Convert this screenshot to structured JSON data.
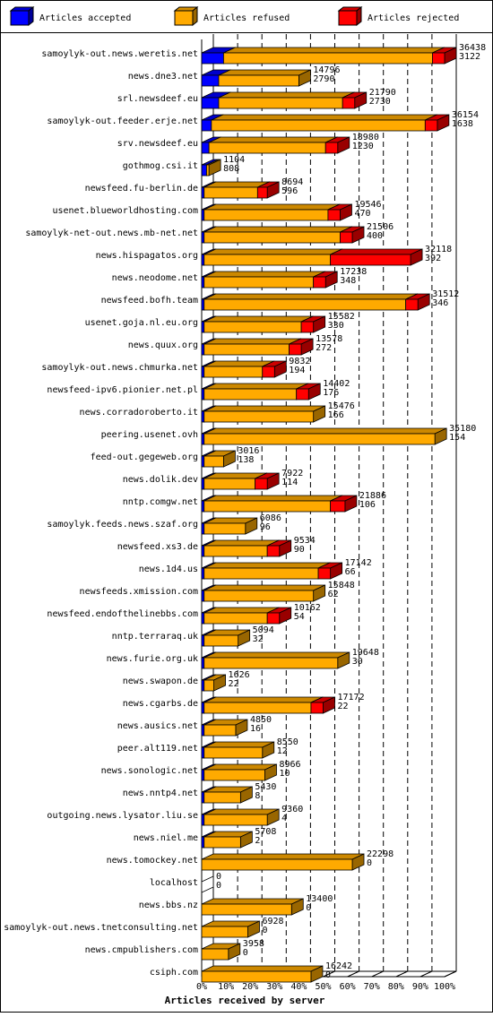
{
  "chart_data": {
    "type": "bar",
    "orientation": "horizontal",
    "stacked": true,
    "xlabel": "Articles received by server",
    "xlim": [
      0,
      100
    ],
    "x_ticks": [
      "0%",
      "10%",
      "20%",
      "30%",
      "40%",
      "50%",
      "60%",
      "70%",
      "80%",
      "90%",
      "100%"
    ],
    "grid": true,
    "legend_position": "top",
    "series": [
      {
        "name": "Articles accepted",
        "color": "#0000ff"
      },
      {
        "name": "Articles refused",
        "color": "#ffaa00"
      },
      {
        "name": "Articles rejected",
        "color": "#ff0000"
      }
    ],
    "rows": [
      {
        "server": "samoylyk-out.news.weretis.net",
        "label_top": "36438",
        "label_bottom": "3122",
        "accepted": 9,
        "refused": 86,
        "rejected": 5
      },
      {
        "server": "news.dne3.net",
        "label_top": "14796",
        "label_bottom": "2790",
        "accepted": 7,
        "refused": 33,
        "rejected": 0
      },
      {
        "server": "srl.newsdeef.eu",
        "label_top": "21790",
        "label_bottom": "2730",
        "accepted": 7,
        "refused": 51,
        "rejected": 5
      },
      {
        "server": "samoylyk-out.feeder.erje.net",
        "label_top": "36154",
        "label_bottom": "1638",
        "accepted": 4,
        "refused": 88,
        "rejected": 5
      },
      {
        "server": "srv.newsdeef.eu",
        "label_top": "18980",
        "label_bottom": "1230",
        "accepted": 3,
        "refused": 48,
        "rejected": 5
      },
      {
        "server": "gothmog.csi.it",
        "label_top": "1104",
        "label_bottom": "808",
        "accepted": 2,
        "refused": 1,
        "rejected": 0
      },
      {
        "server": "newsfeed.fu-berlin.de",
        "label_top": "8694",
        "label_bottom": "596",
        "accepted": 1,
        "refused": 22,
        "rejected": 4
      },
      {
        "server": "usenet.blueworldhosting.com",
        "label_top": "19546",
        "label_bottom": "470",
        "accepted": 1,
        "refused": 51,
        "rejected": 5
      },
      {
        "server": "samoylyk-net-out.news.mb-net.net",
        "label_top": "21506",
        "label_bottom": "400",
        "accepted": 1,
        "refused": 56,
        "rejected": 5
      },
      {
        "server": "news.hispagatos.org",
        "label_top": "32118",
        "label_bottom": "392",
        "accepted": 1,
        "refused": 52,
        "rejected": 33
      },
      {
        "server": "news.neodome.net",
        "label_top": "17238",
        "label_bottom": "348",
        "accepted": 1,
        "refused": 45,
        "rejected": 5
      },
      {
        "server": "newsfeed.bofh.team",
        "label_top": "31512",
        "label_bottom": "346",
        "accepted": 1,
        "refused": 83,
        "rejected": 5
      },
      {
        "server": "usenet.goja.nl.eu.org",
        "label_top": "15582",
        "label_bottom": "330",
        "accepted": 1,
        "refused": 40,
        "rejected": 5
      },
      {
        "server": "news.quux.org",
        "label_top": "13578",
        "label_bottom": "272",
        "accepted": 1,
        "refused": 35,
        "rejected": 5
      },
      {
        "server": "samoylyk-out.news.chmurka.net",
        "label_top": "9832",
        "label_bottom": "194",
        "accepted": 1,
        "refused": 24,
        "rejected": 5
      },
      {
        "server": "newsfeed-ipv6.pionier.net.pl",
        "label_top": "14402",
        "label_bottom": "176",
        "accepted": 1,
        "refused": 38,
        "rejected": 5
      },
      {
        "server": "news.corradoroberto.it",
        "label_top": "15476",
        "label_bottom": "166",
        "accepted": 1,
        "refused": 45,
        "rejected": 0
      },
      {
        "server": "peering.usenet.ovh",
        "label_top": "35180",
        "label_bottom": "154",
        "accepted": 1,
        "refused": 95,
        "rejected": 0
      },
      {
        "server": "feed-out.gegeweb.org",
        "label_top": "3016",
        "label_bottom": "138",
        "accepted": 1,
        "refused": 8,
        "rejected": 0
      },
      {
        "server": "news.dolik.dev",
        "label_top": "7922",
        "label_bottom": "114",
        "accepted": 1,
        "refused": 21,
        "rejected": 5
      },
      {
        "server": "nntp.comgw.net",
        "label_top": "21886",
        "label_bottom": "106",
        "accepted": 1,
        "refused": 52,
        "rejected": 6
      },
      {
        "server": "samoylyk.feeds.news.szaf.org",
        "label_top": "6086",
        "label_bottom": "96",
        "accepted": 1,
        "refused": 17,
        "rejected": 0
      },
      {
        "server": "newsfeed.xs3.de",
        "label_top": "9534",
        "label_bottom": "90",
        "accepted": 1,
        "refused": 26,
        "rejected": 5
      },
      {
        "server": "news.1d4.us",
        "label_top": "17142",
        "label_bottom": "66",
        "accepted": 1,
        "refused": 47,
        "rejected": 5
      },
      {
        "server": "newsfeeds.xmission.com",
        "label_top": "15848",
        "label_bottom": "62",
        "accepted": 1,
        "refused": 45,
        "rejected": 0
      },
      {
        "server": "newsfeed.endofthelinebbs.com",
        "label_top": "10162",
        "label_bottom": "54",
        "accepted": 1,
        "refused": 26,
        "rejected": 5
      },
      {
        "server": "nntp.terraraq.uk",
        "label_top": "5094",
        "label_bottom": "32",
        "accepted": 1,
        "refused": 14,
        "rejected": 0
      },
      {
        "server": "news.furie.org.uk",
        "label_top": "19648",
        "label_bottom": "30",
        "accepted": 1,
        "refused": 55,
        "rejected": 0
      },
      {
        "server": "news.swapon.de",
        "label_top": "1626",
        "label_bottom": "22",
        "accepted": 1,
        "refused": 4,
        "rejected": 0
      },
      {
        "server": "news.cgarbs.de",
        "label_top": "17172",
        "label_bottom": "22",
        "accepted": 1,
        "refused": 44,
        "rejected": 5
      },
      {
        "server": "news.ausics.net",
        "label_top": "4850",
        "label_bottom": "16",
        "accepted": 1,
        "refused": 13,
        "rejected": 0
      },
      {
        "server": "peer.alt119.net",
        "label_top": "8550",
        "label_bottom": "12",
        "accepted": 1,
        "refused": 24,
        "rejected": 0
      },
      {
        "server": "news.sonologic.net",
        "label_top": "8966",
        "label_bottom": "10",
        "accepted": 1,
        "refused": 25,
        "rejected": 0
      },
      {
        "server": "news.nntp4.net",
        "label_top": "5430",
        "label_bottom": "8",
        "accepted": 1,
        "refused": 15,
        "rejected": 0
      },
      {
        "server": "outgoing.news.lysator.liu.se",
        "label_top": "9360",
        "label_bottom": "4",
        "accepted": 1,
        "refused": 26,
        "rejected": 0
      },
      {
        "server": "news.niel.me",
        "label_top": "5708",
        "label_bottom": "2",
        "accepted": 1,
        "refused": 15,
        "rejected": 0
      },
      {
        "server": "news.tomockey.net",
        "label_top": "22298",
        "label_bottom": "0",
        "accepted": 0,
        "refused": 62,
        "rejected": 0
      },
      {
        "server": "localhost",
        "label_top": "0",
        "label_bottom": "0",
        "accepted": 0,
        "refused": 0,
        "rejected": 0
      },
      {
        "server": "news.bbs.nz",
        "label_top": "13400",
        "label_bottom": "0",
        "accepted": 0,
        "refused": 37,
        "rejected": 0
      },
      {
        "server": "samoylyk-out.news.tnetconsulting.net",
        "label_top": "6928",
        "label_bottom": "0",
        "accepted": 0,
        "refused": 19,
        "rejected": 0
      },
      {
        "server": "news.cmpublishers.com",
        "label_top": "3958",
        "label_bottom": "0",
        "accepted": 0,
        "refused": 11,
        "rejected": 0
      },
      {
        "server": "csiph.com",
        "label_top": "16242",
        "label_bottom": "0",
        "accepted": 0,
        "refused": 45,
        "rejected": 0
      }
    ]
  }
}
